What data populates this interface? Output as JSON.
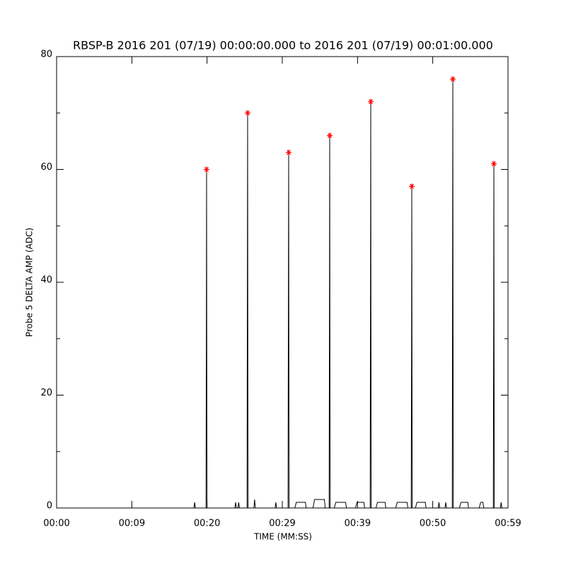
{
  "chart_data": {
    "type": "line",
    "title": "RBSP-B 2016 201 (07/19) 00:00:00.000 to 2016 201 (07/19) 00:01:00.000",
    "x_label": "TIME (MM:SS)",
    "y_label": "Probe 5 DELTA AMP (ADC)",
    "xlim": [
      0,
      59.5
    ],
    "ylim": [
      0,
      80
    ],
    "xticks": [
      {
        "value": 0,
        "label": "00:00"
      },
      {
        "value": 9.92,
        "label": "00:09"
      },
      {
        "value": 19.83,
        "label": "00:20"
      },
      {
        "value": 29.75,
        "label": "00:29"
      },
      {
        "value": 39.67,
        "label": "00:39"
      },
      {
        "value": 49.58,
        "label": "00:50"
      },
      {
        "value": 59.5,
        "label": "00:59"
      }
    ],
    "yticks": [
      0,
      20,
      40,
      60,
      80
    ],
    "yminorticks": [
      10,
      30,
      50,
      70
    ],
    "series": [
      {
        "color": "#000000",
        "x": [
          0,
          18.1,
          18.2,
          18.3,
          19.69,
          19.74,
          19.77,
          19.82,
          23.5,
          23.6,
          23.7,
          23.9,
          24.0,
          24.1,
          25.1,
          25.15,
          25.18,
          25.23,
          26.0,
          26.1,
          26.2,
          28.8,
          28.9,
          29.0,
          30.5,
          30.55,
          30.59,
          30.64,
          31.4,
          31.6,
          32.8,
          32.9,
          33.8,
          34.0,
          35.3,
          35.4,
          35.92,
          35.97,
          36.0,
          36.05,
          36.6,
          36.8,
          38.1,
          38.2,
          39.4,
          39.6,
          40.5,
          40.6,
          41.33,
          41.38,
          41.41,
          41.46,
          42.1,
          42.3,
          43.3,
          43.4,
          44.7,
          44.9,
          46.2,
          46.3,
          46.74,
          46.79,
          46.82,
          46.87,
          47.3,
          47.5,
          48.6,
          48.7,
          50.3,
          50.4,
          50.5,
          51.2,
          51.3,
          51.4,
          52.15,
          52.2,
          52.23,
          52.28,
          53.1,
          53.3,
          54.2,
          54.3,
          55.7,
          55.9,
          56.2,
          56.3,
          57.56,
          57.61,
          57.64,
          57.69,
          58.5,
          58.6,
          58.7,
          59.5
        ],
        "values": [
          0,
          0,
          1,
          0,
          0,
          30,
          60,
          0,
          0,
          1,
          0,
          0,
          1,
          0,
          0,
          42,
          70,
          0,
          0,
          1.5,
          0,
          0,
          1,
          0,
          0,
          33,
          63,
          0,
          0,
          1,
          1,
          0,
          0,
          1.5,
          1.5,
          0,
          0,
          36,
          66,
          0,
          0,
          1,
          1,
          0,
          0,
          1,
          1,
          0,
          0,
          41,
          72,
          0,
          0,
          1,
          1,
          0,
          0,
          1,
          1,
          0,
          0,
          29,
          57,
          0,
          0,
          1,
          1,
          0,
          0,
          1,
          0,
          0,
          1,
          0,
          0,
          47,
          76,
          0,
          0,
          1,
          1,
          0,
          0,
          1,
          1,
          0,
          0,
          32,
          61,
          0,
          0,
          1,
          0,
          0
        ]
      },
      {
        "color": "#ff0000",
        "marker": "asterisk",
        "line": false,
        "x": [
          19.77,
          25.18,
          30.59,
          36.0,
          41.41,
          46.82,
          52.23,
          57.64
        ],
        "values": [
          60,
          70,
          63,
          66,
          72,
          57,
          76,
          61
        ]
      }
    ]
  }
}
